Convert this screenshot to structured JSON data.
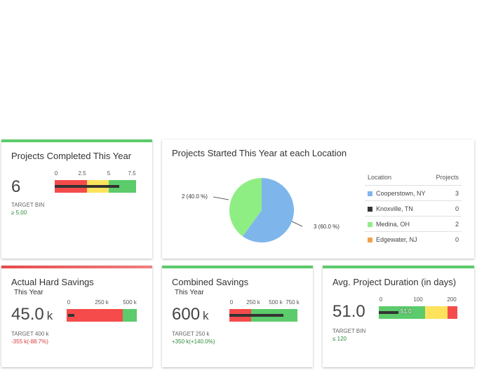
{
  "colors": {
    "red": "#f54b4b",
    "yellow": "#fde35c",
    "green": "#5ccb6b",
    "blue": "#7eb6ec",
    "lightgreen": "#8eee84",
    "dark": "#333333",
    "orange": "#f0a050"
  },
  "card1": {
    "title": "Projects Completed This Year",
    "value": "6",
    "ticks": [
      "0",
      "2.5",
      "5",
      "7.5"
    ],
    "target_label": "TARGET BIN",
    "target_value": "≥ 5.00",
    "bar_value": 6,
    "range_max": 8.5
  },
  "card2": {
    "title": "Projects Started This Year at each Location",
    "pie_labels": [
      "2 (40.0 %)",
      "3 (60.0 %)"
    ],
    "table_headers": {
      "location": "Location",
      "projects": "Projects"
    },
    "rows": [
      {
        "name": "Cooperstown, NY",
        "count": "3",
        "color": "#7eb6ec"
      },
      {
        "name": "Knoxville, TN",
        "count": "0",
        "color": "#333333"
      },
      {
        "name": "Medina, OH",
        "count": "2",
        "color": "#8eee84"
      },
      {
        "name": "Edgewater, NJ",
        "count": "0",
        "color": "#f0a050"
      }
    ],
    "chart_data": {
      "type": "pie",
      "categories": [
        "Cooperstown, NY",
        "Medina, OH"
      ],
      "values": [
        3,
        2
      ]
    }
  },
  "card3": {
    "title": "Actual Hard Savings",
    "subtitle": "This Year",
    "value": "45.0",
    "unit": "k",
    "ticks": [
      "0",
      "250 k",
      "500 k"
    ],
    "target_label": "TARGET 400 k",
    "delta": "-355 k(-88.7%)",
    "bar_value": 45,
    "target_value": 400,
    "range_max": 500
  },
  "card4": {
    "title": "Combined Savings",
    "subtitle": "This Year",
    "value": "600",
    "unit": "k",
    "ticks": [
      "0",
      "250 k",
      "500 k",
      "750 k"
    ],
    "target_label": "TARGET 250 k",
    "delta": "+350 k(+140.0%)",
    "bar_value": 600,
    "target_value": 250,
    "range_max": 750
  },
  "card5": {
    "title": "Avg. Project Duration (in days)",
    "value": "51.0",
    "ticks": [
      "0",
      "100",
      "200"
    ],
    "bar_label": "51.0",
    "target_label": "TARGET BIN",
    "target_value": "≤ 120",
    "bar_value": 51,
    "range_max": 210
  }
}
